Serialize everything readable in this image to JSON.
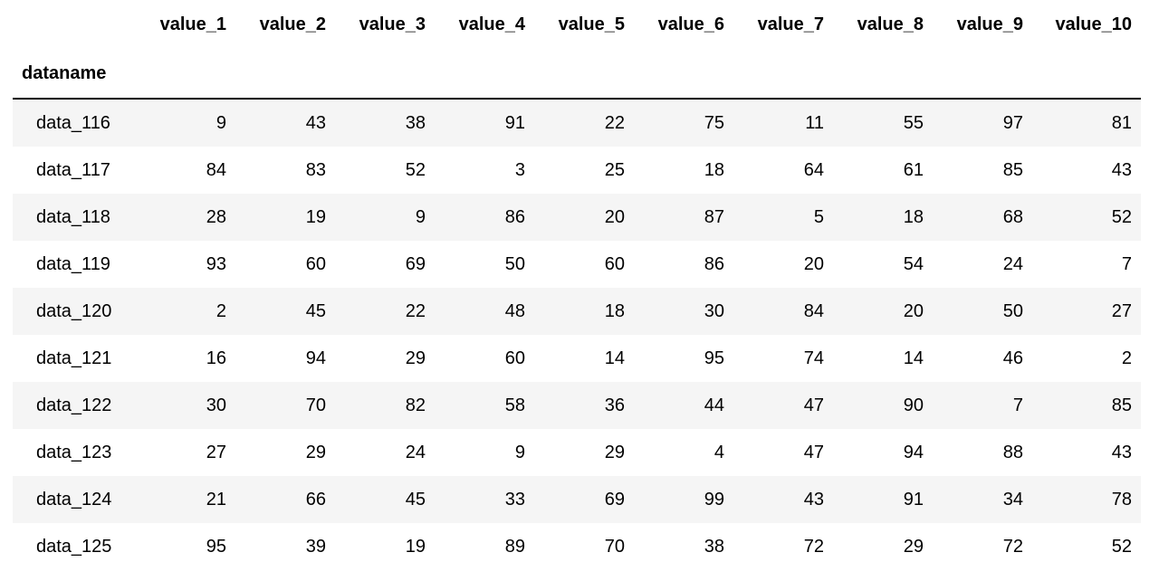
{
  "table": {
    "index_name": "dataname",
    "columns": [
      "value_1",
      "value_2",
      "value_3",
      "value_4",
      "value_5",
      "value_6",
      "value_7",
      "value_8",
      "value_9",
      "value_10"
    ],
    "rows": [
      {
        "index": "data_116",
        "values": [
          9,
          43,
          38,
          91,
          22,
          75,
          11,
          55,
          97,
          81
        ]
      },
      {
        "index": "data_117",
        "values": [
          84,
          83,
          52,
          3,
          25,
          18,
          64,
          61,
          85,
          43
        ]
      },
      {
        "index": "data_118",
        "values": [
          28,
          19,
          9,
          86,
          20,
          87,
          5,
          18,
          68,
          52
        ]
      },
      {
        "index": "data_119",
        "values": [
          93,
          60,
          69,
          50,
          60,
          86,
          20,
          54,
          24,
          7
        ]
      },
      {
        "index": "data_120",
        "values": [
          2,
          45,
          22,
          48,
          18,
          30,
          84,
          20,
          50,
          27
        ]
      },
      {
        "index": "data_121",
        "values": [
          16,
          94,
          29,
          60,
          14,
          95,
          74,
          14,
          46,
          2
        ]
      },
      {
        "index": "data_122",
        "values": [
          30,
          70,
          82,
          58,
          36,
          44,
          47,
          90,
          7,
          85
        ]
      },
      {
        "index": "data_123",
        "values": [
          27,
          29,
          24,
          9,
          29,
          4,
          47,
          94,
          88,
          43
        ]
      },
      {
        "index": "data_124",
        "values": [
          21,
          66,
          45,
          33,
          69,
          99,
          43,
          91,
          34,
          78
        ]
      },
      {
        "index": "data_125",
        "values": [
          95,
          39,
          19,
          89,
          70,
          38,
          72,
          29,
          72,
          52
        ]
      }
    ],
    "stripe_color": "#f5f5f5",
    "border_color": "#000000"
  }
}
